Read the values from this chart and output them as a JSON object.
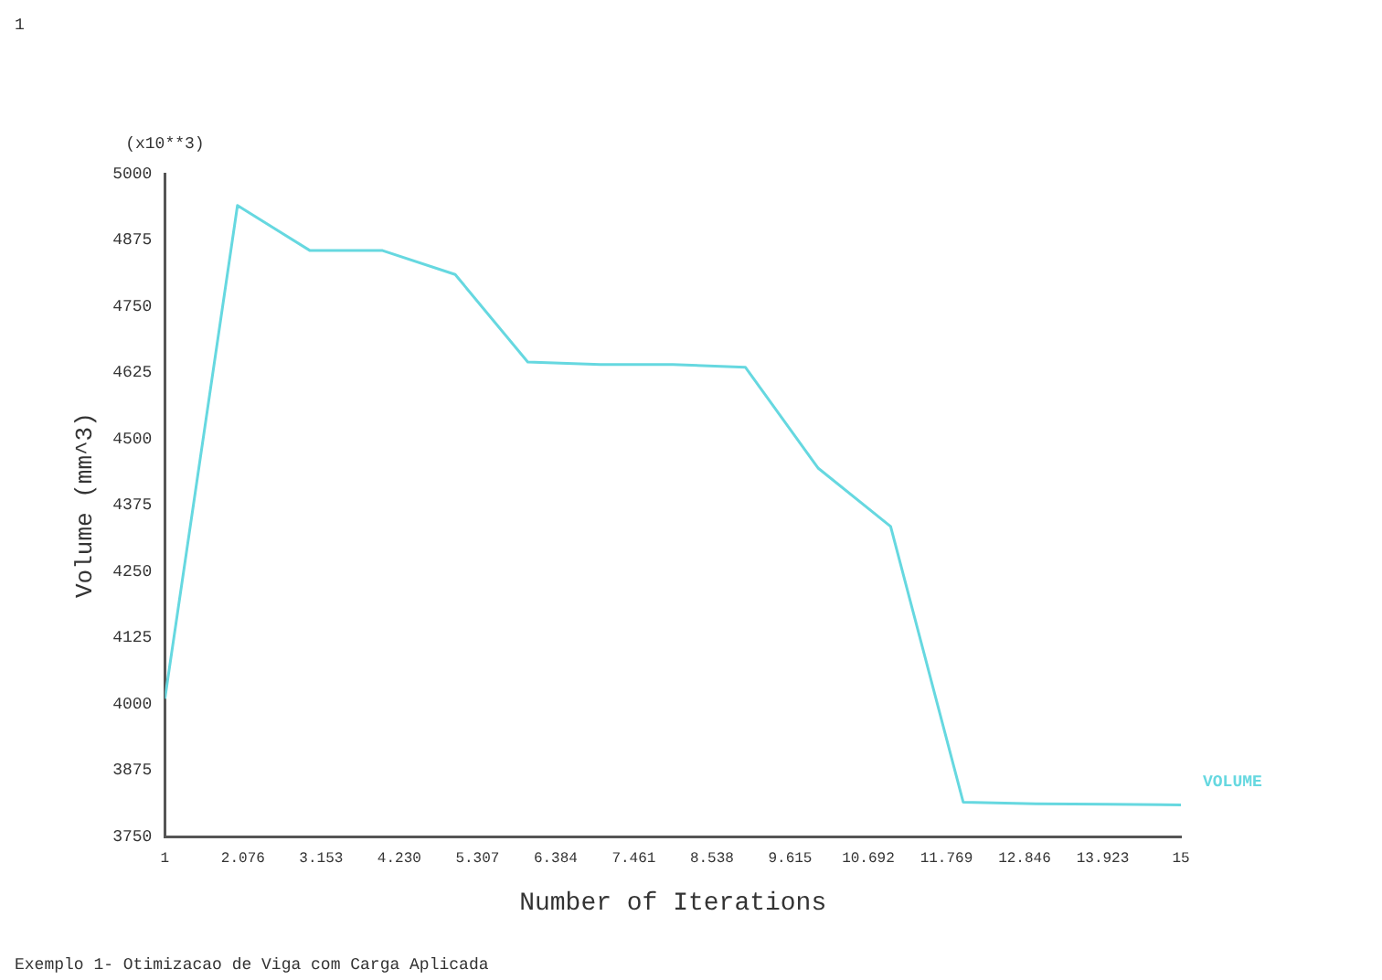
{
  "chart_data": {
    "type": "line",
    "xlabel": "Number of Iterations",
    "ylabel": "Volume (mm^3)",
    "annotations": [
      "1",
      "Exemplo 1- Otimizacao de Viga com Carga Aplicada",
      "(x10**3)"
    ],
    "x": [
      1,
      2,
      3,
      4,
      5,
      6,
      7,
      8,
      9,
      10,
      11,
      12,
      13,
      14,
      15
    ],
    "series": [
      {
        "name": "VOLUME",
        "color": "#66d8e0",
        "values": [
          4010,
          4940,
          4855,
          4855,
          4810,
          4645,
          4640,
          4640,
          4635,
          4445,
          4335,
          3815,
          3812,
          3811,
          3810
        ]
      }
    ],
    "xlim": [
      1,
      15
    ],
    "xticks": [
      1,
      2.076,
      3.153,
      {
        "value": 4.23,
        "label": "4.230"
      },
      5.307,
      6.384,
      7.461,
      8.538,
      9.615,
      10.692,
      11.769,
      12.846,
      13.923,
      15
    ],
    "ylim": [
      3750,
      5000
    ],
    "yticks": [
      3750,
      3875,
      4000,
      4125,
      4250,
      4375,
      4500,
      4625,
      4750,
      4875,
      5000
    ],
    "grid": false,
    "marker": "none",
    "line_style": "solid"
  }
}
